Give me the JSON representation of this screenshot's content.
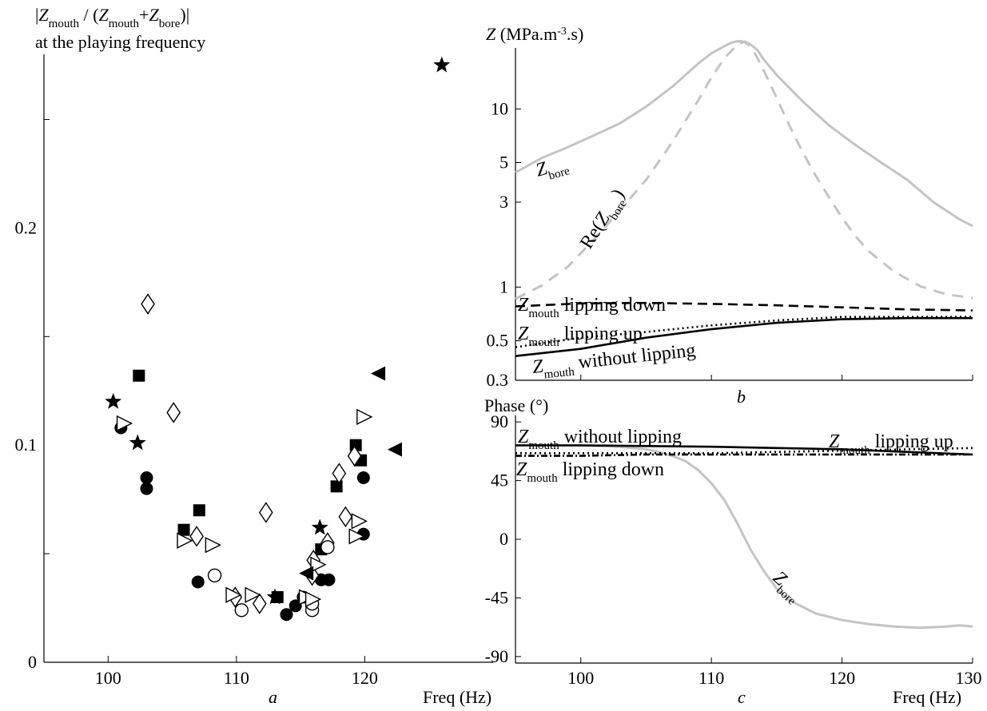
{
  "chart_data": [
    {
      "panel": "a",
      "type": "scatter",
      "panel_label": "a",
      "ylabel_lines": [
        "|Z_mouth / (Z_mouth+Z_bore)|",
        "at the playing frequency"
      ],
      "xlabel": "Freq (Hz)",
      "xlim": [
        95,
        130
      ],
      "ylim": [
        0,
        0.28
      ],
      "xticks": [
        100,
        110,
        120
      ],
      "yticks": [
        0,
        0.1,
        0.2
      ],
      "ytick_labels": [
        "0",
        "0.1",
        "0.2"
      ],
      "series": [
        {
          "marker": "star",
          "points": [
            [
              100.4,
              0.12
            ],
            [
              102.3,
              0.101
            ],
            [
              116.5,
              0.062
            ],
            [
              113.0,
              0.03
            ],
            [
              126.0,
              0.275
            ]
          ]
        },
        {
          "marker": "filled-circle",
          "points": [
            [
              101.0,
              0.108
            ],
            [
              103.0,
              0.085
            ],
            [
              103.0,
              0.08
            ],
            [
              107.0,
              0.037
            ],
            [
              113.9,
              0.022
            ],
            [
              114.6,
              0.026
            ],
            [
              115.2,
              0.03
            ],
            [
              116.6,
              0.038
            ],
            [
              117.2,
              0.038
            ],
            [
              119.9,
              0.085
            ],
            [
              119.9,
              0.059
            ]
          ]
        },
        {
          "marker": "filled-square",
          "points": [
            [
              102.4,
              0.132
            ],
            [
              105.9,
              0.061
            ],
            [
              107.1,
              0.07
            ],
            [
              113.2,
              0.03
            ],
            [
              116.6,
              0.052
            ],
            [
              117.8,
              0.081
            ],
            [
              119.3,
              0.1
            ],
            [
              119.7,
              0.093
            ]
          ]
        },
        {
          "marker": "open-diamond",
          "points": [
            [
              103.1,
              0.165
            ],
            [
              105.1,
              0.115
            ],
            [
              106.9,
              0.058
            ],
            [
              109.9,
              0.03
            ],
            [
              112.3,
              0.069
            ],
            [
              111.8,
              0.027
            ],
            [
              115.9,
              0.04
            ],
            [
              116.0,
              0.047
            ],
            [
              117.1,
              0.055
            ],
            [
              118.0,
              0.087
            ],
            [
              118.5,
              0.067
            ],
            [
              119.2,
              0.095
            ]
          ]
        },
        {
          "marker": "open-circle",
          "points": [
            [
              108.3,
              0.04
            ],
            [
              110.4,
              0.024
            ],
            [
              115.9,
              0.024
            ],
            [
              115.9,
              0.027
            ],
            [
              117.1,
              0.053
            ]
          ]
        },
        {
          "marker": "open-triangle-right",
          "points": [
            [
              101.2,
              0.11
            ],
            [
              105.9,
              0.056
            ],
            [
              108.1,
              0.054
            ],
            [
              109.7,
              0.031
            ],
            [
              111.2,
              0.031
            ],
            [
              115.4,
              0.03
            ],
            [
              115.9,
              0.029
            ],
            [
              116.3,
              0.045
            ],
            [
              119.5,
              0.065
            ],
            [
              119.3,
              0.058
            ],
            [
              119.9,
              0.113
            ]
          ]
        },
        {
          "marker": "filled-triangle-left",
          "points": [
            [
              121.1,
              0.133
            ],
            [
              122.4,
              0.098
            ],
            [
              115.5,
              0.041
            ]
          ]
        }
      ]
    },
    {
      "panel": "b",
      "type": "line",
      "panel_label": "b",
      "ylabel": "Z (MPa.m-3.s)",
      "yscale": "log",
      "xlim": [
        95,
        130
      ],
      "ylim": [
        0.3,
        22
      ],
      "yticks": [
        0.3,
        0.5,
        1,
        3,
        5,
        10
      ],
      "ytick_labels": [
        "0.3",
        "0.5",
        "1",
        "3",
        "5",
        "10"
      ],
      "xticks": [
        100,
        110,
        120,
        130
      ],
      "annotations": [
        "Zbore",
        "Re(Zbore)",
        "Zmouth lipping down",
        "Zmouth lipping up",
        "Zmouth without lipping"
      ],
      "series": [
        {
          "label": "Zbore",
          "style": "solid-gray",
          "x": [
            95,
            97,
            99,
            101,
            103,
            105,
            107,
            109,
            110,
            111,
            111.5,
            112,
            112.3,
            112.6,
            113,
            113.5,
            114,
            115,
            117,
            119,
            121,
            123,
            125,
            127,
            129,
            130
          ],
          "y": [
            4.4,
            5.3,
            6.1,
            7.1,
            8.3,
            10.3,
            13.3,
            18.0,
            20.5,
            22.5,
            23.5,
            24.0,
            24.0,
            23.8,
            23.0,
            21.5,
            19.0,
            15.5,
            11.0,
            8.1,
            6.3,
            5.0,
            4.0,
            3.0,
            2.4,
            2.2
          ]
        },
        {
          "label": "Re(Zbore)",
          "style": "dashed-gray",
          "x": [
            95,
            97,
            99,
            101,
            103,
            105,
            107,
            109,
            110,
            111,
            112,
            112.5,
            113,
            113.5,
            114,
            115,
            116,
            117,
            118,
            119,
            120,
            121,
            122,
            124,
            126,
            128,
            130
          ],
          "y": [
            0.86,
            1.02,
            1.3,
            1.85,
            2.7,
            4.0,
            6.5,
            11.2,
            15.0,
            19.3,
            23.0,
            23.8,
            22.5,
            19.5,
            16.5,
            11.5,
            8.0,
            5.7,
            4.2,
            3.2,
            2.45,
            1.95,
            1.6,
            1.22,
            1.01,
            0.91,
            0.87
          ]
        },
        {
          "label": "Zmouth lipping down",
          "style": "dashed-black",
          "x": [
            95,
            100,
            105,
            110,
            115,
            120,
            125,
            130
          ],
          "y": [
            0.78,
            0.81,
            0.815,
            0.805,
            0.79,
            0.77,
            0.75,
            0.74
          ]
        },
        {
          "label": "Zmouth lipping up",
          "style": "dotted-black",
          "x": [
            95,
            100,
            105,
            110,
            115,
            120,
            125,
            130
          ],
          "y": [
            0.46,
            0.52,
            0.56,
            0.61,
            0.65,
            0.68,
            0.68,
            0.68
          ]
        },
        {
          "label": "Zmouth without lipping",
          "style": "solid-black",
          "x": [
            95,
            100,
            105,
            110,
            115,
            120,
            125,
            130
          ],
          "y": [
            0.41,
            0.45,
            0.52,
            0.58,
            0.63,
            0.66,
            0.67,
            0.67
          ]
        }
      ]
    },
    {
      "panel": "c",
      "type": "line",
      "panel_label": "c",
      "ylabel": "Phase (°)",
      "xlabel": "Freq (Hz)",
      "xlim": [
        95,
        130
      ],
      "ylim": [
        -95,
        95
      ],
      "yticks": [
        -90,
        -45,
        0,
        45,
        90
      ],
      "ytick_labels": [
        "-90",
        "-45",
        "0",
        "45",
        "90"
      ],
      "xticks": [
        100,
        110,
        120,
        130
      ],
      "xtick_labels": [
        "100",
        "110",
        "120",
        "130"
      ],
      "annotations": [
        "Zmouth without lipping",
        "Zmouth lipping up",
        "Zmouth lipping down",
        "Zbore"
      ],
      "series": [
        {
          "label": "Zbore",
          "style": "solid-gray",
          "x": [
            95,
            100,
            103,
            105,
            106,
            107,
            108,
            109,
            110,
            111,
            112,
            113,
            114,
            115,
            116,
            118,
            120,
            122,
            124,
            126,
            128,
            129,
            130
          ],
          "y": [
            72,
            72,
            71,
            69,
            67,
            64,
            60,
            53,
            43,
            30,
            12,
            -8,
            -24,
            -38,
            -47,
            -57,
            -62,
            -65,
            -67,
            -68,
            -67,
            -66,
            -67
          ]
        },
        {
          "label": "Zmouth without lipping",
          "style": "solid-black",
          "x": [
            95,
            100,
            105,
            110,
            115,
            120,
            125,
            130
          ],
          "y": [
            72,
            72,
            71.5,
            71,
            70,
            69,
            67,
            65
          ]
        },
        {
          "label": "Zmouth lipping up",
          "style": "dotted-black",
          "x": [
            95,
            100,
            105,
            110,
            115,
            120,
            125,
            130
          ],
          "y": [
            66,
            66,
            66,
            66,
            67,
            68,
            69,
            70
          ]
        },
        {
          "label": "Zmouth lipping down",
          "style": "dashdot-black",
          "x": [
            95,
            100,
            105,
            110,
            115,
            120,
            125,
            130
          ],
          "y": [
            64,
            64,
            65,
            65,
            65,
            65,
            65,
            65
          ]
        }
      ]
    }
  ]
}
